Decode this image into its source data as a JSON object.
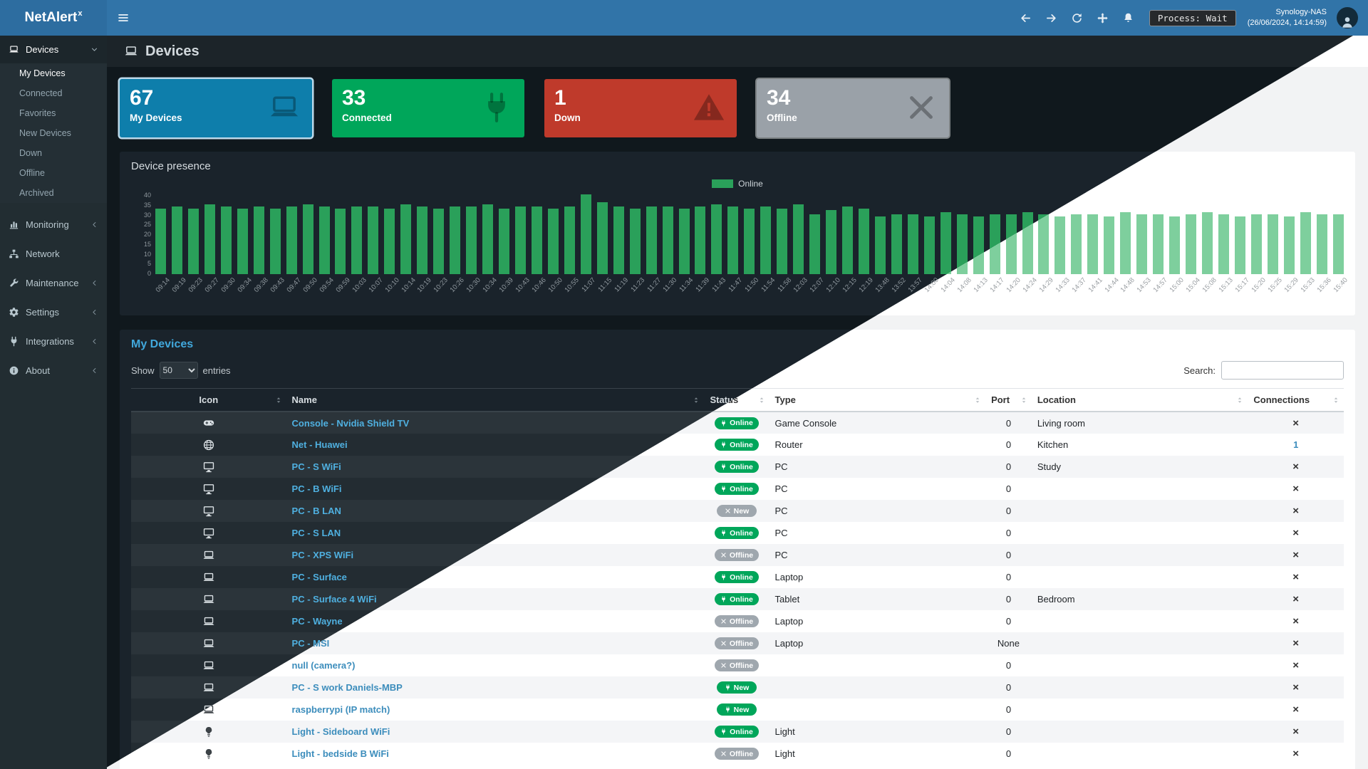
{
  "navbar": {
    "brand": "NetAlert",
    "brand_sup": "x",
    "process_label": "Process: Wait",
    "host": "Synology-NAS",
    "timestamp": "(26/06/2024, 14:14:59)"
  },
  "sidebar": {
    "devices": {
      "label": "Devices",
      "icon": "laptop-icon"
    },
    "submenu": [
      {
        "label": "My Devices",
        "active": true
      },
      {
        "label": "Connected",
        "active": false
      },
      {
        "label": "Favorites",
        "active": false
      },
      {
        "label": "New Devices",
        "active": false
      },
      {
        "label": "Down",
        "active": false
      },
      {
        "label": "Offline",
        "active": false
      },
      {
        "label": "Archived",
        "active": false
      }
    ],
    "sections": [
      {
        "label": "Monitoring",
        "icon": "chart-icon",
        "chevron": true
      },
      {
        "label": "Network",
        "icon": "network-icon",
        "chevron": false
      },
      {
        "label": "Maintenance",
        "icon": "wrench-icon",
        "chevron": true
      },
      {
        "label": "Settings",
        "icon": "gear-icon",
        "chevron": true
      },
      {
        "label": "Integrations",
        "icon": "plug-icon",
        "chevron": true
      },
      {
        "label": "About",
        "icon": "info-icon",
        "chevron": true
      }
    ]
  },
  "page": {
    "title": "Devices"
  },
  "stats": [
    {
      "value": "67",
      "label": "My Devices",
      "color": "#0e7eab",
      "icon": "laptop-icon",
      "selected": true,
      "subtle_border": false
    },
    {
      "value": "33",
      "label": "Connected",
      "color": "#00a65a",
      "icon": "plug-icon",
      "selected": false,
      "subtle_border": false
    },
    {
      "value": "1",
      "label": "Down",
      "color": "#bf3a2b",
      "icon": "warning-icon",
      "selected": false,
      "subtle_border": false
    },
    {
      "value": "34",
      "label": "Offline",
      "color": "#9aa1a8",
      "icon": "x-icon",
      "selected": false,
      "subtle_border": true
    }
  ],
  "presence": {
    "title": "Device presence",
    "legend": "Online",
    "chart_data": {
      "type": "bar",
      "title": "Device presence",
      "legend_entries": [
        "Online"
      ],
      "xlabel": "",
      "ylabel": "",
      "ylim": [
        0,
        40
      ],
      "yticks": [
        40,
        35,
        30,
        25,
        20,
        15,
        10,
        5,
        0
      ],
      "x": [
        "09:14",
        "09:19",
        "09:23",
        "09:27",
        "09:30",
        "09:34",
        "09:38",
        "09:43",
        "09:47",
        "09:50",
        "09:54",
        "09:59",
        "10:03",
        "10:07",
        "10:10",
        "10:14",
        "10:19",
        "10:23",
        "10:26",
        "10:30",
        "10:34",
        "10:39",
        "10:43",
        "10:46",
        "10:50",
        "10:55",
        "11:07",
        "11:15",
        "11:19",
        "11:23",
        "11:27",
        "11:30",
        "11:34",
        "11:39",
        "11:43",
        "11:47",
        "11:50",
        "11:54",
        "11:58",
        "12:03",
        "12:07",
        "12:10",
        "12:15",
        "12:19",
        "13:48",
        "13:52",
        "13:57",
        "14:00",
        "14:04",
        "14:08",
        "14:13",
        "14:17",
        "14:20",
        "14:24",
        "14:29",
        "14:33",
        "14:37",
        "14:41",
        "14:44",
        "14:48",
        "14:53",
        "14:57",
        "15:00",
        "15:04",
        "15:08",
        "15:13",
        "15:17",
        "15:20",
        "15:25",
        "15:29",
        "15:33",
        "15:36",
        "15:40"
      ],
      "values": [
        33,
        34,
        33,
        35,
        34,
        33,
        34,
        33,
        34,
        35,
        34,
        33,
        34,
        34,
        33,
        35,
        34,
        33,
        34,
        34,
        35,
        33,
        34,
        34,
        33,
        34,
        40,
        36,
        34,
        33,
        34,
        34,
        33,
        34,
        35,
        34,
        33,
        34,
        33,
        35,
        30,
        32,
        34,
        33,
        29,
        30,
        30,
        29,
        31,
        30,
        29,
        30,
        30,
        31,
        30,
        29,
        30,
        30,
        29,
        31,
        30,
        30,
        29,
        30,
        31,
        30,
        29,
        30,
        30,
        29,
        31,
        30,
        30
      ]
    }
  },
  "devices_table": {
    "title": "My Devices",
    "show_label": "Show",
    "page_size": "50",
    "entries_label": "entries",
    "search_label": "Search:",
    "columns": [
      "Icon",
      "Name",
      "Status",
      "Type",
      "Port",
      "Location",
      "Connections"
    ],
    "rows": [
      {
        "icon": "gamepad-icon",
        "name": "Console - Nvidia Shield TV",
        "status": "Online",
        "status_variant": "green",
        "status_icon": "plug-icon",
        "type": "Game Console",
        "port": "0",
        "location": "Living room",
        "connections": "x"
      },
      {
        "icon": "globe-icon",
        "name": "Net - Huawei",
        "status": "Online",
        "status_variant": "green",
        "status_icon": "plug-icon",
        "type": "Router",
        "port": "0",
        "location": "Kitchen",
        "connections": "1"
      },
      {
        "icon": "desktop-icon",
        "name": "PC - S WiFi",
        "status": "Online",
        "status_variant": "green",
        "status_icon": "plug-icon",
        "type": "PC",
        "port": "0",
        "location": "Study",
        "connections": "x"
      },
      {
        "icon": "desktop-icon",
        "name": "PC - B WiFi",
        "status": "Online",
        "status_variant": "green",
        "status_icon": "plug-icon",
        "type": "PC",
        "port": "0",
        "location": "",
        "connections": "x"
      },
      {
        "icon": "desktop-icon",
        "name": "PC - B LAN",
        "status": "New",
        "status_variant": "gray",
        "status_icon": "x-icon",
        "type": "PC",
        "port": "0",
        "location": "",
        "connections": "x"
      },
      {
        "icon": "desktop-icon",
        "name": "PC - S LAN",
        "status": "Online",
        "status_variant": "green",
        "status_icon": "plug-icon",
        "type": "PC",
        "port": "0",
        "location": "",
        "connections": "x"
      },
      {
        "icon": "laptop-icon",
        "name": "PC - XPS WiFi",
        "status": "Offline",
        "status_variant": "gray",
        "status_icon": "x-icon",
        "type": "PC",
        "port": "0",
        "location": "",
        "connections": "x"
      },
      {
        "icon": "laptop-icon",
        "name": "PC - Surface",
        "status": "Online",
        "status_variant": "green",
        "status_icon": "plug-icon",
        "type": "Laptop",
        "port": "0",
        "location": "",
        "connections": "x"
      },
      {
        "icon": "laptop-icon",
        "name": "PC - Surface 4 WiFi",
        "status": "Online",
        "status_variant": "green",
        "status_icon": "plug-icon",
        "type": "Tablet",
        "port": "0",
        "location": "Bedroom",
        "connections": "x"
      },
      {
        "icon": "laptop-icon",
        "name": "PC - Wayne",
        "status": "Offline",
        "status_variant": "gray",
        "status_icon": "x-icon",
        "type": "Laptop",
        "port": "0",
        "location": "",
        "connections": "x"
      },
      {
        "icon": "laptop-icon",
        "name": "PC - MSI",
        "status": "Offline",
        "status_variant": "gray",
        "status_icon": "x-icon",
        "type": "Laptop",
        "port": "None",
        "location": "",
        "connections": "x"
      },
      {
        "icon": "laptop-icon",
        "name": "null (camera?)",
        "status": "Offline",
        "status_variant": "gray",
        "status_icon": "x-icon",
        "type": "",
        "port": "0",
        "location": "",
        "connections": "x"
      },
      {
        "icon": "laptop-icon",
        "name": "PC - S work Daniels-MBP",
        "status": "New",
        "status_variant": "green",
        "status_icon": "plug-icon",
        "type": "",
        "port": "0",
        "location": "",
        "connections": "x"
      },
      {
        "icon": "laptop-icon",
        "name": "raspberrypi (IP match)",
        "status": "New",
        "status_variant": "green",
        "status_icon": "plug-icon",
        "type": "",
        "port": "0",
        "location": "",
        "connections": "x"
      },
      {
        "icon": "lightbulb-icon",
        "name": "Light - Sideboard WiFi",
        "status": "Online",
        "status_variant": "green",
        "status_icon": "plug-icon",
        "type": "Light",
        "port": "0",
        "location": "",
        "connections": "x"
      },
      {
        "icon": "lightbulb-icon",
        "name": "Light - bedside B WiFi",
        "status": "Offline",
        "status_variant": "gray",
        "status_icon": "x-icon",
        "type": "Light",
        "port": "0",
        "location": "",
        "connections": "x"
      }
    ]
  },
  "colors": {
    "navbar_blue": "#3174a8",
    "sidebar_dark": "#222d32",
    "content_dark": "#10181d",
    "panel_dark": "#1a232b",
    "bar_green_dark": "#2aa05a",
    "bar_green_light": "#7ecf9d",
    "badge_green": "#00a65a",
    "badge_gray": "#9fa7ae",
    "link_dark": "#4fb0e0",
    "link_light": "#3c8dbc"
  }
}
